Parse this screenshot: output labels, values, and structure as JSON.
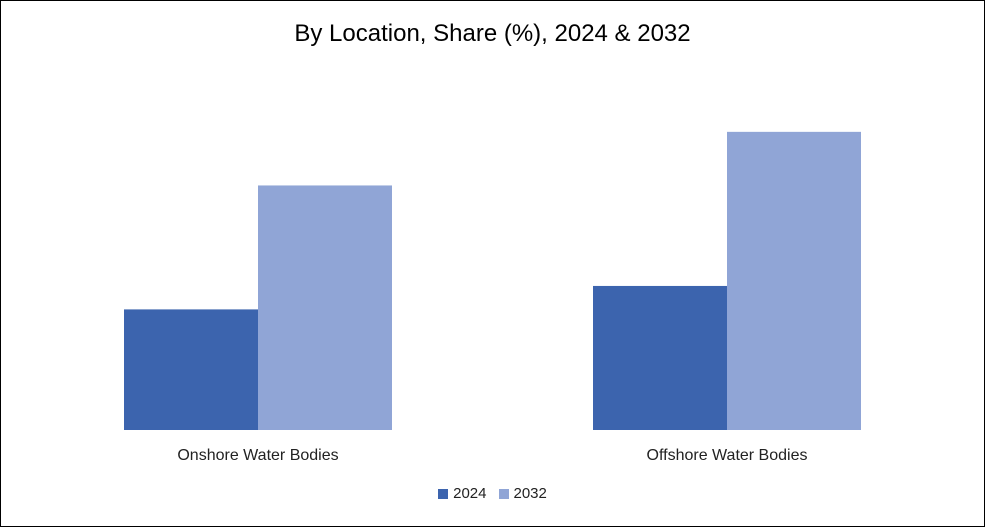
{
  "chart_data": {
    "type": "bar",
    "title": "By Location, Share (%), 2024 & 2032",
    "categories": [
      "Onshore Water Bodies",
      "Offshore Water Bodies"
    ],
    "series": [
      {
        "name": "2024",
        "color": "#3c64ae",
        "values": [
          36,
          43
        ]
      },
      {
        "name": "2032",
        "color": "#90a5d6",
        "values": [
          73,
          89
        ]
      }
    ],
    "ylim": [
      0,
      100
    ],
    "grid": false,
    "legend": "bottom-center",
    "xlabel": "",
    "ylabel": ""
  }
}
